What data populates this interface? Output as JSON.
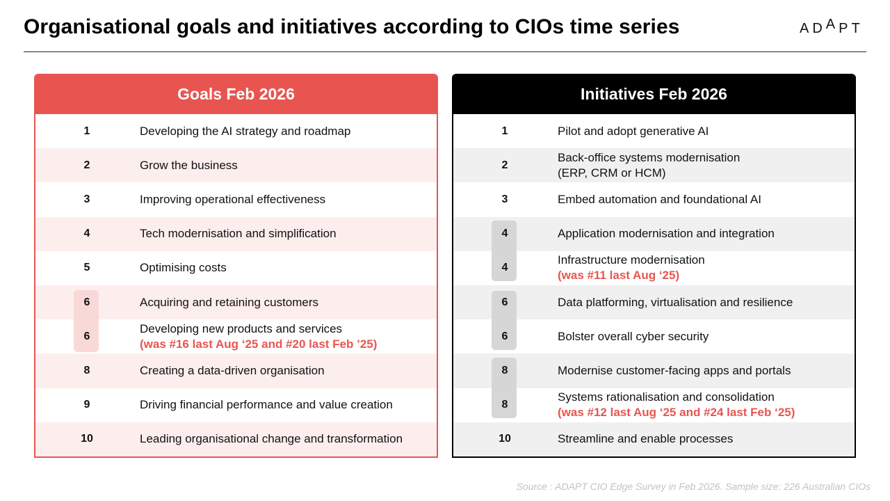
{
  "title": "Organisational goals and initiatives according to CIOs time series",
  "logo": {
    "part1": "AD",
    "part2": "A",
    "part3": "PT"
  },
  "colors": {
    "goals_accent": "#e85550",
    "initiatives_accent": "#000000",
    "note": "#e85550"
  },
  "goals": {
    "header": "Goals Feb 2026",
    "rows": [
      {
        "rank": "1",
        "label": "Developing the AI strategy and roadmap",
        "note": ""
      },
      {
        "rank": "2",
        "label": "Grow the business",
        "note": ""
      },
      {
        "rank": "3",
        "label": "Improving operational effectiveness",
        "note": ""
      },
      {
        "rank": "4",
        "label": "Tech modernisation and simplification",
        "note": ""
      },
      {
        "rank": "5",
        "label": "Optimising costs",
        "note": ""
      },
      {
        "rank": "6",
        "label": "Acquiring and retaining customers",
        "note": ""
      },
      {
        "rank": "6",
        "label": "Developing new products and services",
        "note": "(was #16 last Aug ‘25 and #20 last Feb ’25)"
      },
      {
        "rank": "8",
        "label": "Creating a data-driven organisation",
        "note": ""
      },
      {
        "rank": "9",
        "label": "Driving financial performance and value creation",
        "note": ""
      },
      {
        "rank": "10",
        "label": "Leading organisational change and transformation",
        "note": ""
      }
    ]
  },
  "initiatives": {
    "header": "Initiatives Feb 2026",
    "rows": [
      {
        "rank": "1",
        "label": "Pilot and adopt generative AI",
        "label2": "",
        "note": ""
      },
      {
        "rank": "2",
        "label": "Back-office systems modernisation",
        "label2": "(ERP, CRM or HCM)",
        "note": ""
      },
      {
        "rank": "3",
        "label": "Embed automation and foundational AI",
        "label2": "",
        "note": ""
      },
      {
        "rank": "4",
        "label": "Application modernisation and integration",
        "label2": "",
        "note": ""
      },
      {
        "rank": "4",
        "label": "Infrastructure modernisation",
        "label2": "",
        "note": "(was #11 last Aug ‘25)"
      },
      {
        "rank": "6",
        "label": "Data platforming, virtualisation and resilience",
        "label2": "",
        "note": ""
      },
      {
        "rank": "6",
        "label": "Bolster overall cyber security",
        "label2": "",
        "note": ""
      },
      {
        "rank": "8",
        "label": "Modernise customer-facing apps and portals",
        "label2": "",
        "note": ""
      },
      {
        "rank": "8",
        "label": "Systems rationalisation and consolidation",
        "label2": "",
        "note": "(was #12 last Aug ‘25 and #24  last Feb ‘25)"
      },
      {
        "rank": "10",
        "label": "Streamline and enable processes",
        "label2": "",
        "note": ""
      }
    ]
  },
  "source": "Source : ADAPT CIO Edge Survey in Feb 2026. Sample size: 226 Australian CIOs"
}
